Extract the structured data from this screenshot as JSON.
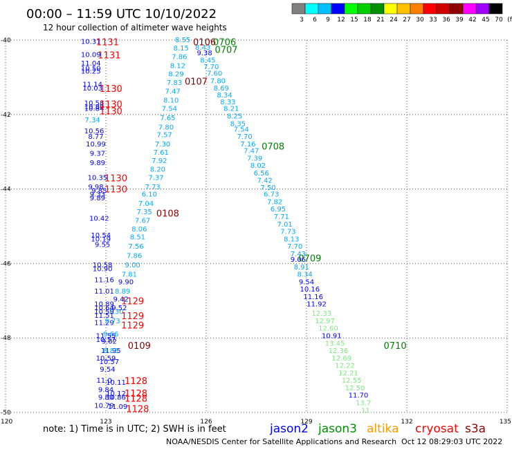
{
  "header": {
    "title": "00:00 – 11:59 UTC 10/10/2022",
    "subtitle": "12 hour collection of altimeter wave heights"
  },
  "colorbar": {
    "ticks": [
      "3",
      "6",
      "9",
      "12",
      "15",
      "18",
      "21",
      "24",
      "27",
      "30",
      "33",
      "36",
      "39",
      "42",
      "45",
      "70",
      "(ft)"
    ],
    "colors": [
      "#808080",
      "#00ffff",
      "#00bfff",
      "#0000ff",
      "#00ff00",
      "#00d000",
      "#009000",
      "#ffff00",
      "#ffc000",
      "#ff8000",
      "#ff0000",
      "#d00000",
      "#900000",
      "#ff00ff",
      "#a000ff",
      "#000000"
    ]
  },
  "footer": {
    "note": "note: 1) Time is in UTC; 2) SWH is in feet",
    "satellites": [
      {
        "name": "jason2",
        "color": "#0000ff"
      },
      {
        "name": "jason3",
        "color": "#009000"
      },
      {
        "name": "altika",
        "color": "#ff9900"
      },
      {
        "name": "cryosat",
        "color": "#ff0000"
      },
      {
        "name": "s3a",
        "color": "#8b0000"
      }
    ],
    "credit": "NOAA/NESDIS Center for Satellite Applications and Research",
    "timestamp": "Oct 12 08:29:03 UTC 2022"
  },
  "chart_data": {
    "type": "scatter",
    "x_axis": {
      "ticks": [
        120,
        123,
        126,
        129,
        132,
        135
      ],
      "range": [
        120,
        135
      ]
    },
    "y_axis": {
      "ticks": [
        -40,
        -42,
        -44,
        -46,
        -48,
        -50
      ],
      "range": [
        -50,
        -40
      ]
    },
    "grid": true,
    "colors": {
      "dark_blue": "#0000ff",
      "med_blue": "#00aaff",
      "light_green": "#7ee87e",
      "red": "#ff0000",
      "dark_red": "#8b0000",
      "dark_green": "#008000"
    },
    "points": [
      {
        "x": 122.55,
        "y": -40.05,
        "v": "10.31",
        "c": "dark_blue"
      },
      {
        "x": 122.55,
        "y": -40.4,
        "v": "10.09",
        "c": "dark_blue"
      },
      {
        "x": 122.55,
        "y": -40.63,
        "v": "11.04",
        "c": "dark_blue"
      },
      {
        "x": 122.55,
        "y": -40.77,
        "v": "10.50",
        "c": "dark_blue"
      },
      {
        "x": 122.55,
        "y": -40.84,
        "v": "10.25",
        "c": "dark_blue"
      },
      {
        "x": 122.6,
        "y": -41.2,
        "v": "11.14",
        "c": "dark_blue"
      },
      {
        "x": 122.6,
        "y": -41.3,
        "v": "10.03",
        "c": "dark_blue"
      },
      {
        "x": 122.65,
        "y": -41.7,
        "v": "10.58",
        "c": "dark_blue"
      },
      {
        "x": 122.65,
        "y": -41.8,
        "v": "10.80",
        "c": "dark_blue"
      },
      {
        "x": 122.65,
        "y": -41.85,
        "v": "10.84",
        "c": "dark_blue"
      },
      {
        "x": 122.6,
        "y": -42.15,
        "v": "7.34",
        "c": "med_blue"
      },
      {
        "x": 122.65,
        "y": -42.45,
        "v": "10.56",
        "c": "dark_blue"
      },
      {
        "x": 122.7,
        "y": -42.6,
        "v": "8.77",
        "c": "dark_blue"
      },
      {
        "x": 122.7,
        "y": -42.8,
        "v": "10.99",
        "c": "dark_blue"
      },
      {
        "x": 122.75,
        "y": -43.05,
        "v": "9.37",
        "c": "dark_blue"
      },
      {
        "x": 122.75,
        "y": -43.3,
        "v": "9.89",
        "c": "dark_blue"
      },
      {
        "x": 122.75,
        "y": -43.7,
        "v": "10.35",
        "c": "dark_blue"
      },
      {
        "x": 122.7,
        "y": -43.95,
        "v": "9.98",
        "c": "dark_blue"
      },
      {
        "x": 122.8,
        "y": -44.05,
        "v": "9.85",
        "c": "dark_blue"
      },
      {
        "x": 122.75,
        "y": -44.15,
        "v": "9.33",
        "c": "dark_blue"
      },
      {
        "x": 122.75,
        "y": -44.25,
        "v": "9.89",
        "c": "dark_blue"
      },
      {
        "x": 122.8,
        "y": -44.8,
        "v": "10.42",
        "c": "dark_blue"
      },
      {
        "x": 122.85,
        "y": -45.25,
        "v": "10.54",
        "c": "dark_blue"
      },
      {
        "x": 122.85,
        "y": -45.35,
        "v": "10.19",
        "c": "dark_blue"
      },
      {
        "x": 122.9,
        "y": -45.5,
        "v": "9.55",
        "c": "dark_blue"
      },
      {
        "x": 122.9,
        "y": -46.05,
        "v": "10.58",
        "c": "dark_blue"
      },
      {
        "x": 122.9,
        "y": -46.15,
        "v": "10.90",
        "c": "dark_blue"
      },
      {
        "x": 122.95,
        "y": -46.45,
        "v": "11.16",
        "c": "dark_blue"
      },
      {
        "x": 122.95,
        "y": -46.75,
        "v": "11.01",
        "c": "dark_blue"
      },
      {
        "x": 122.95,
        "y": -47.1,
        "v": "10.89",
        "c": "dark_blue"
      },
      {
        "x": 122.95,
        "y": -47.2,
        "v": "10.64",
        "c": "dark_blue"
      },
      {
        "x": 122.95,
        "y": -47.3,
        "v": "10.59",
        "c": "dark_blue"
      },
      {
        "x": 122.95,
        "y": -47.4,
        "v": "11.51",
        "c": "dark_blue"
      },
      {
        "x": 122.95,
        "y": -47.6,
        "v": "11.29",
        "c": "dark_blue"
      },
      {
        "x": 123.0,
        "y": -47.95,
        "v": "11.55",
        "c": "dark_blue"
      },
      {
        "x": 123.0,
        "y": -48.05,
        "v": "10.57",
        "c": "dark_blue"
      },
      {
        "x": 123.15,
        "y": -48.35,
        "v": "11.95",
        "c": "dark_blue"
      },
      {
        "x": 123.0,
        "y": -48.55,
        "v": "10.59",
        "c": "dark_blue"
      },
      {
        "x": 123.1,
        "y": -48.65,
        "v": "10.57",
        "c": "dark_blue"
      },
      {
        "x": 123.05,
        "y": -48.85,
        "v": "9.54",
        "c": "dark_blue"
      },
      {
        "x": 122.95,
        "y": -49.15,
        "v": "11.0",
        "c": "dark_blue"
      },
      {
        "x": 123.0,
        "y": -49.4,
        "v": "9.84",
        "c": "dark_blue"
      },
      {
        "x": 123.3,
        "y": -49.2,
        "v": "10.11",
        "c": "dark_blue"
      },
      {
        "x": 123.0,
        "y": -49.6,
        "v": "9.80",
        "c": "dark_blue"
      },
      {
        "x": 123.3,
        "y": -49.5,
        "v": "10.12",
        "c": "dark_blue"
      },
      {
        "x": 123.3,
        "y": -49.6,
        "v": "10.86",
        "c": "dark_blue"
      },
      {
        "x": 122.95,
        "y": -49.82,
        "v": "10.79",
        "c": "dark_blue"
      },
      {
        "x": 123.35,
        "y": -49.85,
        "v": "11.09",
        "c": "dark_blue"
      },
      {
        "x": 123.2,
        "y": -47.55,
        "v": "9.73",
        "c": "med_blue"
      },
      {
        "x": 123.3,
        "y": -47.3,
        "v": "7.30",
        "c": "med_blue"
      },
      {
        "x": 123.4,
        "y": -47.2,
        "v": "9.52",
        "c": "dark_blue"
      },
      {
        "x": 123.45,
        "y": -46.97,
        "v": "9.42",
        "c": "dark_blue"
      },
      {
        "x": 123.15,
        "y": -47.9,
        "v": "9.66",
        "c": "med_blue"
      },
      {
        "x": 123.1,
        "y": -48.1,
        "v": "9.02",
        "c": "dark_blue"
      },
      {
        "x": 123.15,
        "y": -48.35,
        "v": "8.85",
        "c": "med_blue"
      },
      {
        "x": 123.5,
        "y": -46.75,
        "v": "8.89",
        "c": "med_blue"
      },
      {
        "x": 123.6,
        "y": -46.5,
        "v": "9.90",
        "c": "dark_blue"
      },
      {
        "x": 123.7,
        "y": -46.3,
        "v": "7.81",
        "c": "med_blue"
      },
      {
        "x": 123.8,
        "y": -46.05,
        "v": "9.00",
        "c": "med_blue"
      },
      {
        "x": 123.85,
        "y": -45.8,
        "v": "7.86",
        "c": "med_blue"
      },
      {
        "x": 123.9,
        "y": -45.55,
        "v": "7.56",
        "c": "med_blue"
      },
      {
        "x": 123.95,
        "y": -45.3,
        "v": "8.51",
        "c": "med_blue"
      },
      {
        "x": 124.0,
        "y": -45.08,
        "v": "8.06",
        "c": "med_blue"
      },
      {
        "x": 124.1,
        "y": -44.85,
        "v": "7.67",
        "c": "med_blue"
      },
      {
        "x": 124.15,
        "y": -44.62,
        "v": "7.35",
        "c": "med_blue"
      },
      {
        "x": 124.2,
        "y": -44.4,
        "v": "7.04",
        "c": "med_blue"
      },
      {
        "x": 124.3,
        "y": -44.15,
        "v": "6.10",
        "c": "med_blue"
      },
      {
        "x": 124.4,
        "y": -43.95,
        "v": "7.73",
        "c": "med_blue"
      },
      {
        "x": 124.5,
        "y": -43.7,
        "v": "7.37",
        "c": "med_blue"
      },
      {
        "x": 124.55,
        "y": -43.48,
        "v": "8.20",
        "c": "med_blue"
      },
      {
        "x": 124.6,
        "y": -43.25,
        "v": "7.92",
        "c": "med_blue"
      },
      {
        "x": 124.65,
        "y": -43.02,
        "v": "7.61",
        "c": "med_blue"
      },
      {
        "x": 124.7,
        "y": -42.8,
        "v": "7.30",
        "c": "med_blue"
      },
      {
        "x": 124.75,
        "y": -42.55,
        "v": "7.57",
        "c": "med_blue"
      },
      {
        "x": 124.8,
        "y": -42.35,
        "v": "7.80",
        "c": "med_blue"
      },
      {
        "x": 124.85,
        "y": -42.1,
        "v": "7.65",
        "c": "med_blue"
      },
      {
        "x": 124.9,
        "y": -41.85,
        "v": "7.54",
        "c": "med_blue"
      },
      {
        "x": 124.95,
        "y": -41.62,
        "v": "8.10",
        "c": "med_blue"
      },
      {
        "x": 125.0,
        "y": -41.38,
        "v": "7.47",
        "c": "med_blue"
      },
      {
        "x": 125.05,
        "y": -41.15,
        "v": "7.83",
        "c": "med_blue"
      },
      {
        "x": 125.1,
        "y": -40.92,
        "v": "8.29",
        "c": "med_blue"
      },
      {
        "x": 125.15,
        "y": -40.7,
        "v": "8.12",
        "c": "med_blue"
      },
      {
        "x": 125.2,
        "y": -40.45,
        "v": "7.86",
        "c": "med_blue"
      },
      {
        "x": 125.25,
        "y": -40.22,
        "v": "8.15",
        "c": "med_blue"
      },
      {
        "x": 125.3,
        "y": -40.0,
        "v": "8.55",
        "c": "med_blue"
      },
      {
        "x": 125.9,
        "y": -40.2,
        "v": "8.43",
        "c": "med_blue"
      },
      {
        "x": 125.95,
        "y": -40.35,
        "v": "9.38",
        "c": "dark_blue"
      },
      {
        "x": 126.05,
        "y": -40.55,
        "v": "8.45",
        "c": "med_blue"
      },
      {
        "x": 126.15,
        "y": -40.72,
        "v": "7.70",
        "c": "med_blue"
      },
      {
        "x": 126.25,
        "y": -40.9,
        "v": "7.60",
        "c": "med_blue"
      },
      {
        "x": 126.35,
        "y": -41.1,
        "v": "7.80",
        "c": "med_blue"
      },
      {
        "x": 126.45,
        "y": -41.3,
        "v": "8.69",
        "c": "med_blue"
      },
      {
        "x": 126.55,
        "y": -41.48,
        "v": "8.34",
        "c": "med_blue"
      },
      {
        "x": 126.65,
        "y": -41.67,
        "v": "8.33",
        "c": "med_blue"
      },
      {
        "x": 126.75,
        "y": -41.85,
        "v": "8.21",
        "c": "med_blue"
      },
      {
        "x": 126.85,
        "y": -42.05,
        "v": "8.25",
        "c": "med_blue"
      },
      {
        "x": 126.95,
        "y": -42.25,
        "v": "8.35",
        "c": "med_blue"
      },
      {
        "x": 127.05,
        "y": -42.4,
        "v": "7.54",
        "c": "med_blue"
      },
      {
        "x": 127.15,
        "y": -42.6,
        "v": "7.70",
        "c": "med_blue"
      },
      {
        "x": 127.25,
        "y": -42.8,
        "v": "7.16",
        "c": "med_blue"
      },
      {
        "x": 127.35,
        "y": -42.98,
        "v": "7.47",
        "c": "med_blue"
      },
      {
        "x": 127.45,
        "y": -43.18,
        "v": "7.39",
        "c": "med_blue"
      },
      {
        "x": 127.55,
        "y": -43.38,
        "v": "8.02",
        "c": "med_blue"
      },
      {
        "x": 127.65,
        "y": -43.58,
        "v": "6.56",
        "c": "med_blue"
      },
      {
        "x": 127.75,
        "y": -43.78,
        "v": "7.42",
        "c": "med_blue"
      },
      {
        "x": 127.85,
        "y": -43.97,
        "v": "7.50",
        "c": "med_blue"
      },
      {
        "x": 127.95,
        "y": -44.15,
        "v": "6.73",
        "c": "med_blue"
      },
      {
        "x": 128.05,
        "y": -44.35,
        "v": "7.82",
        "c": "med_blue"
      },
      {
        "x": 128.15,
        "y": -44.55,
        "v": "6.95",
        "c": "med_blue"
      },
      {
        "x": 128.25,
        "y": -44.75,
        "v": "7.71",
        "c": "med_blue"
      },
      {
        "x": 128.35,
        "y": -44.95,
        "v": "7.01",
        "c": "med_blue"
      },
      {
        "x": 128.45,
        "y": -45.15,
        "v": "7.73",
        "c": "med_blue"
      },
      {
        "x": 128.55,
        "y": -45.35,
        "v": "8.13",
        "c": "med_blue"
      },
      {
        "x": 128.65,
        "y": -45.55,
        "v": "7.70",
        "c": "med_blue"
      },
      {
        "x": 128.75,
        "y": -45.75,
        "v": "7.43",
        "c": "med_blue"
      },
      {
        "x": 128.75,
        "y": -45.9,
        "v": "9.06",
        "c": "dark_blue"
      },
      {
        "x": 128.85,
        "y": -46.1,
        "v": "8.91",
        "c": "med_blue"
      },
      {
        "x": 128.95,
        "y": -46.3,
        "v": "8.34",
        "c": "med_blue"
      },
      {
        "x": 129.0,
        "y": -46.5,
        "v": "9.54",
        "c": "dark_blue"
      },
      {
        "x": 129.1,
        "y": -46.7,
        "v": "10.16",
        "c": "dark_blue"
      },
      {
        "x": 129.2,
        "y": -46.9,
        "v": "11.16",
        "c": "dark_blue"
      },
      {
        "x": 129.3,
        "y": -47.1,
        "v": "11.92",
        "c": "dark_blue"
      },
      {
        "x": 129.45,
        "y": -47.35,
        "v": "12.33",
        "c": "light_green"
      },
      {
        "x": 129.55,
        "y": -47.55,
        "v": "12.97",
        "c": "light_green"
      },
      {
        "x": 129.65,
        "y": -47.75,
        "v": "12.60",
        "c": "light_green"
      },
      {
        "x": 129.75,
        "y": -47.95,
        "v": "10.91",
        "c": "dark_blue"
      },
      {
        "x": 129.85,
        "y": -48.15,
        "v": "13.45",
        "c": "light_green"
      },
      {
        "x": 129.95,
        "y": -48.35,
        "v": "12.36",
        "c": "light_green"
      },
      {
        "x": 130.05,
        "y": -48.55,
        "v": "12.69",
        "c": "light_green"
      },
      {
        "x": 130.15,
        "y": -48.75,
        "v": "12.22",
        "c": "light_green"
      },
      {
        "x": 130.25,
        "y": -48.95,
        "v": "12.21",
        "c": "light_green"
      },
      {
        "x": 130.35,
        "y": -49.15,
        "v": "12.55",
        "c": "light_green"
      },
      {
        "x": 130.45,
        "y": -49.35,
        "v": "12.50",
        "c": "light_green"
      },
      {
        "x": 130.55,
        "y": -49.55,
        "v": "11.70",
        "c": "dark_blue"
      },
      {
        "x": 130.7,
        "y": -49.75,
        "v": "13.7",
        "c": "light_green"
      },
      {
        "x": 130.8,
        "y": -49.95,
        "v": "11.",
        "c": "light_green"
      }
    ],
    "time_tags": [
      {
        "x": 123.05,
        "y": -40.05,
        "t": "1131",
        "c": "red"
      },
      {
        "x": 123.1,
        "y": -40.4,
        "t": "1131",
        "c": "red"
      },
      {
        "x": 123.15,
        "y": -41.3,
        "t": "1130",
        "c": "red"
      },
      {
        "x": 123.15,
        "y": -41.72,
        "t": "1130",
        "c": "red"
      },
      {
        "x": 123.15,
        "y": -41.9,
        "t": "1130",
        "c": "red"
      },
      {
        "x": 123.3,
        "y": -43.7,
        "t": "1130",
        "c": "red"
      },
      {
        "x": 123.3,
        "y": -44.0,
        "t": "1130",
        "c": "red"
      },
      {
        "x": 123.8,
        "y": -47.0,
        "t": "1129",
        "c": "red"
      },
      {
        "x": 123.8,
        "y": -47.4,
        "t": "1129",
        "c": "red"
      },
      {
        "x": 123.8,
        "y": -47.65,
        "t": "1129",
        "c": "red"
      },
      {
        "x": 123.9,
        "y": -49.15,
        "t": "1128",
        "c": "red"
      },
      {
        "x": 123.9,
        "y": -49.48,
        "t": "1128",
        "c": "red"
      },
      {
        "x": 123.9,
        "y": -49.62,
        "t": "1128",
        "c": "red"
      },
      {
        "x": 123.95,
        "y": -49.9,
        "t": "1128",
        "c": "red"
      },
      {
        "x": 125.95,
        "y": -40.05,
        "t": "0106",
        "c": "dark_red"
      },
      {
        "x": 126.55,
        "y": -40.05,
        "t": "0706",
        "c": "dark_green"
      },
      {
        "x": 126.6,
        "y": -40.25,
        "t": "0707",
        "c": "dark_green"
      },
      {
        "x": 125.7,
        "y": -41.1,
        "t": "0107",
        "c": "dark_red"
      },
      {
        "x": 128.0,
        "y": -42.85,
        "t": "0708",
        "c": "dark_green"
      },
      {
        "x": 124.85,
        "y": -44.65,
        "t": "0108",
        "c": "dark_red"
      },
      {
        "x": 129.1,
        "y": -45.85,
        "t": "0709",
        "c": "dark_green"
      },
      {
        "x": 124.0,
        "y": -48.2,
        "t": "0109",
        "c": "dark_red"
      },
      {
        "x": 131.65,
        "y": -48.2,
        "t": "0710",
        "c": "dark_green"
      }
    ]
  }
}
